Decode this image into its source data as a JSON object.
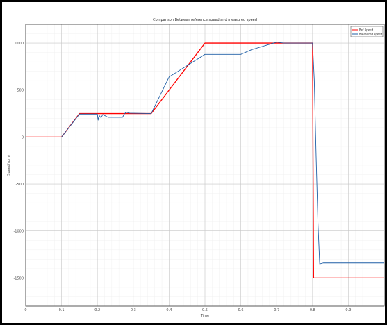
{
  "chart_data": {
    "type": "line",
    "title": "Comparison Between reference speed and measured speed",
    "xlabel": "Time",
    "ylabel": "Speed(rpm)",
    "xlim": [
      0,
      1
    ],
    "ylim": [
      -1800,
      1200
    ],
    "grid": true,
    "legend_position": "top-right",
    "x_ticks": [
      0,
      0.1,
      0.2,
      0.3,
      0.4,
      0.5,
      0.6,
      0.7,
      0.8,
      0.9
    ],
    "x_tick_labels": [
      "0",
      "0.1",
      "0.2",
      "0.3",
      "0.4",
      "0.5",
      "0.6",
      "0.7",
      "0.8",
      "0.9"
    ],
    "y_ticks": [
      1000,
      500,
      0,
      -500,
      -1000,
      -1500
    ],
    "y_tick_labels": [
      "1000",
      "500",
      "0",
      "-500",
      "-1000",
      "-1500"
    ],
    "series": [
      {
        "name": "Ref Speed",
        "color": "#ff0000",
        "x": [
          0,
          0.1,
          0.15,
          0.35,
          0.5,
          0.8,
          0.803,
          1.0
        ],
        "y": [
          0,
          0,
          250,
          250,
          1000,
          1000,
          -1500,
          -1500
        ]
      },
      {
        "name": "measured speed",
        "color": "#1f5fa6",
        "x": [
          0,
          0.1,
          0.15,
          0.2,
          0.202,
          0.205,
          0.21,
          0.215,
          0.23,
          0.27,
          0.275,
          0.28,
          0.29,
          0.35,
          0.4,
          0.5,
          0.6,
          0.63,
          0.7,
          0.72,
          0.8,
          0.805,
          0.81,
          0.815,
          0.82,
          0.83,
          0.85,
          1.0
        ],
        "y": [
          0,
          0,
          245,
          245,
          180,
          230,
          205,
          240,
          210,
          210,
          245,
          265,
          255,
          250,
          640,
          880,
          880,
          930,
          1010,
          1000,
          1000,
          600,
          -200,
          -900,
          -1350,
          -1340,
          -1340,
          -1340
        ]
      }
    ]
  }
}
